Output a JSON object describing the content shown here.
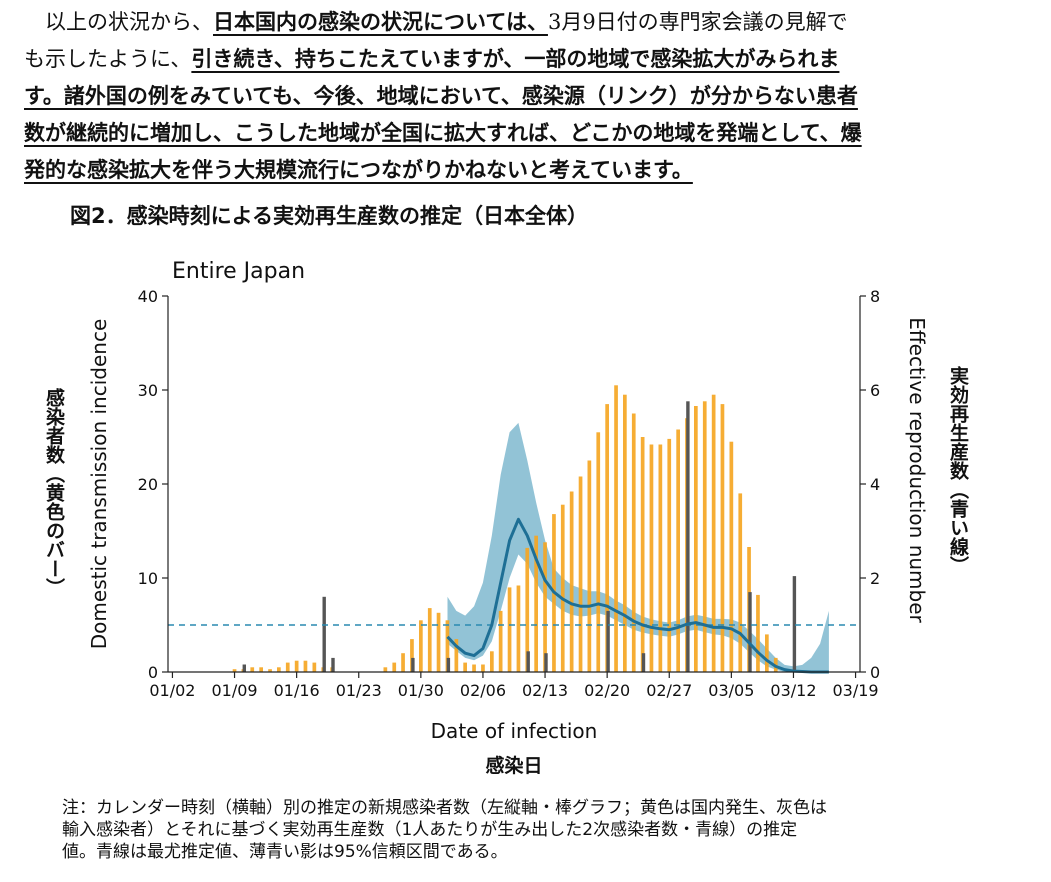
{
  "paragraph": {
    "lines": [
      [
        {
          "t": "　以上の状況から、",
          "em": false
        },
        {
          "t": "日本国内の感染の状況については、",
          "em": true
        },
        {
          "t": "3月9日付の専門家会議の見解で",
          "em": false
        }
      ],
      [
        {
          "t": "も示したように、",
          "em": false
        },
        {
          "t": "引き続き、持ちこたえていますが、一部の地域で感染拡大がみられま",
          "em": true
        }
      ],
      [
        {
          "t": "す。諸外国の例をみていても、今後、地域において、感染源（リンク）が分からない患者",
          "em": true
        }
      ],
      [
        {
          "t": "数が継続的に増加し、こうした地域が全国に拡大すれば、どこかの地域を発端として、爆",
          "em": true
        }
      ],
      [
        {
          "t": "発的な感染拡大を伴う大規模流行につながりかねないと考えています。",
          "em": true
        }
      ]
    ]
  },
  "figure_title": "図2．感染時刻による実効再生産数の推定（日本全体）",
  "chart_data": {
    "type": "bar",
    "title": "Entire Japan",
    "xlabel": "Date of infection",
    "xlabel_ja": "感染日",
    "ylabel_left": "Domestic transmission incidence",
    "ylabel_left_ja": "感染者数（黄色のバー）",
    "ylabel_right": "Effective reproduction number",
    "ylabel_right_ja": "実効再生産数（青い線）",
    "ylim_left": [
      0,
      40
    ],
    "ylim_right": [
      0,
      8
    ],
    "yticks_left": [
      0,
      10,
      20,
      30,
      40
    ],
    "yticks_right": [
      0,
      2,
      4,
      6,
      8
    ],
    "xticks": [
      "01/02",
      "01/09",
      "01/16",
      "01/23",
      "01/30",
      "02/06",
      "02/13",
      "02/20",
      "02/27",
      "03/05",
      "03/12",
      "03/19"
    ],
    "x_start": "2020-01-02",
    "domestic": [
      {
        "date": "2020-01-09",
        "v": 0.3
      },
      {
        "date": "2020-01-10",
        "v": 0.3
      },
      {
        "date": "2020-01-11",
        "v": 0.5
      },
      {
        "date": "2020-01-12",
        "v": 0.5
      },
      {
        "date": "2020-01-13",
        "v": 0.3
      },
      {
        "date": "2020-01-14",
        "v": 0.5
      },
      {
        "date": "2020-01-15",
        "v": 1.0
      },
      {
        "date": "2020-01-16",
        "v": 1.2
      },
      {
        "date": "2020-01-17",
        "v": 1.2
      },
      {
        "date": "2020-01-18",
        "v": 1.0
      },
      {
        "date": "2020-01-19",
        "v": 0.5
      },
      {
        "date": "2020-01-20",
        "v": 0.5
      },
      {
        "date": "2020-01-26",
        "v": 0.5
      },
      {
        "date": "2020-01-27",
        "v": 1.0
      },
      {
        "date": "2020-01-28",
        "v": 2.0
      },
      {
        "date": "2020-01-29",
        "v": 3.5
      },
      {
        "date": "2020-01-30",
        "v": 5.5
      },
      {
        "date": "2020-01-31",
        "v": 6.8
      },
      {
        "date": "2020-02-01",
        "v": 6.3
      },
      {
        "date": "2020-02-02",
        "v": 5.5
      },
      {
        "date": "2020-02-03",
        "v": 3.5
      },
      {
        "date": "2020-02-04",
        "v": 1.0
      },
      {
        "date": "2020-02-05",
        "v": 0.8
      },
      {
        "date": "2020-02-06",
        "v": 0.8
      },
      {
        "date": "2020-02-07",
        "v": 2.2
      },
      {
        "date": "2020-02-08",
        "v": 6.5
      },
      {
        "date": "2020-02-09",
        "v": 9.0
      },
      {
        "date": "2020-02-10",
        "v": 9.2
      },
      {
        "date": "2020-02-11",
        "v": 13.2
      },
      {
        "date": "2020-02-12",
        "v": 14.5
      },
      {
        "date": "2020-02-13",
        "v": 13.8
      },
      {
        "date": "2020-02-14",
        "v": 16.8
      },
      {
        "date": "2020-02-15",
        "v": 17.8
      },
      {
        "date": "2020-02-16",
        "v": 19.2
      },
      {
        "date": "2020-02-17",
        "v": 20.8
      },
      {
        "date": "2020-02-18",
        "v": 22.5
      },
      {
        "date": "2020-02-19",
        "v": 25.5
      },
      {
        "date": "2020-02-20",
        "v": 28.5
      },
      {
        "date": "2020-02-21",
        "v": 30.5
      },
      {
        "date": "2020-02-22",
        "v": 29.5
      },
      {
        "date": "2020-02-23",
        "v": 27.5
      },
      {
        "date": "2020-02-24",
        "v": 25.0
      },
      {
        "date": "2020-02-25",
        "v": 24.2
      },
      {
        "date": "2020-02-26",
        "v": 24.2
      },
      {
        "date": "2020-02-27",
        "v": 24.8
      },
      {
        "date": "2020-02-28",
        "v": 25.8
      },
      {
        "date": "2020-02-29",
        "v": 27.0
      },
      {
        "date": "2020-03-01",
        "v": 28.3
      },
      {
        "date": "2020-03-02",
        "v": 28.8
      },
      {
        "date": "2020-03-03",
        "v": 29.5
      },
      {
        "date": "2020-03-04",
        "v": 28.5
      },
      {
        "date": "2020-03-05",
        "v": 24.5
      },
      {
        "date": "2020-03-06",
        "v": 19.0
      },
      {
        "date": "2020-03-07",
        "v": 13.3
      },
      {
        "date": "2020-03-08",
        "v": 8.2
      },
      {
        "date": "2020-03-09",
        "v": 4.0
      },
      {
        "date": "2020-03-10",
        "v": 1.5
      }
    ],
    "imported": [
      {
        "date": "2020-01-10",
        "v": 0.8
      },
      {
        "date": "2020-01-19",
        "v": 8.0
      },
      {
        "date": "2020-01-20",
        "v": 1.5
      },
      {
        "date": "2020-01-29",
        "v": 1.5
      },
      {
        "date": "2020-02-02",
        "v": 1.5
      },
      {
        "date": "2020-02-11",
        "v": 2.2
      },
      {
        "date": "2020-02-13",
        "v": 2.0
      },
      {
        "date": "2020-02-20",
        "v": 6.5
      },
      {
        "date": "2020-02-24",
        "v": 2.0
      },
      {
        "date": "2020-02-29",
        "v": 28.8
      },
      {
        "date": "2020-03-07",
        "v": 8.5
      },
      {
        "date": "2020-03-12",
        "v": 10.2
      }
    ],
    "reproduction_number": [
      {
        "date": "2020-02-02",
        "r": 0.75,
        "lo": 0.6,
        "hi": 1.6
      },
      {
        "date": "2020-02-03",
        "r": 0.55,
        "lo": 0.45,
        "hi": 1.3
      },
      {
        "date": "2020-02-04",
        "r": 0.4,
        "lo": 0.3,
        "hi": 1.2
      },
      {
        "date": "2020-02-05",
        "r": 0.35,
        "lo": 0.25,
        "hi": 1.4
      },
      {
        "date": "2020-02-06",
        "r": 0.5,
        "lo": 0.35,
        "hi": 1.9
      },
      {
        "date": "2020-02-07",
        "r": 1.0,
        "lo": 0.65,
        "hi": 2.9
      },
      {
        "date": "2020-02-08",
        "r": 1.9,
        "lo": 1.3,
        "hi": 4.2
      },
      {
        "date": "2020-02-09",
        "r": 2.8,
        "lo": 2.0,
        "hi": 5.1
      },
      {
        "date": "2020-02-10",
        "r": 3.25,
        "lo": 2.5,
        "hi": 5.3
      },
      {
        "date": "2020-02-11",
        "r": 2.9,
        "lo": 2.3,
        "hi": 4.5
      },
      {
        "date": "2020-02-12",
        "r": 2.4,
        "lo": 1.9,
        "hi": 3.6
      },
      {
        "date": "2020-02-13",
        "r": 1.95,
        "lo": 1.6,
        "hi": 2.8
      },
      {
        "date": "2020-02-14",
        "r": 1.7,
        "lo": 1.45,
        "hi": 2.2
      },
      {
        "date": "2020-02-15",
        "r": 1.55,
        "lo": 1.3,
        "hi": 2.0
      },
      {
        "date": "2020-02-16",
        "r": 1.45,
        "lo": 1.22,
        "hi": 1.85
      },
      {
        "date": "2020-02-17",
        "r": 1.4,
        "lo": 1.18,
        "hi": 1.78
      },
      {
        "date": "2020-02-18",
        "r": 1.4,
        "lo": 1.2,
        "hi": 1.72
      },
      {
        "date": "2020-02-19",
        "r": 1.45,
        "lo": 1.25,
        "hi": 1.72
      },
      {
        "date": "2020-02-20",
        "r": 1.4,
        "lo": 1.2,
        "hi": 1.65
      },
      {
        "date": "2020-02-21",
        "r": 1.3,
        "lo": 1.1,
        "hi": 1.52
      },
      {
        "date": "2020-02-22",
        "r": 1.2,
        "lo": 1.0,
        "hi": 1.42
      },
      {
        "date": "2020-02-23",
        "r": 1.08,
        "lo": 0.9,
        "hi": 1.28
      },
      {
        "date": "2020-02-24",
        "r": 1.0,
        "lo": 0.84,
        "hi": 1.18
      },
      {
        "date": "2020-02-25",
        "r": 0.95,
        "lo": 0.8,
        "hi": 1.12
      },
      {
        "date": "2020-02-26",
        "r": 0.92,
        "lo": 0.77,
        "hi": 1.08
      },
      {
        "date": "2020-02-27",
        "r": 0.9,
        "lo": 0.75,
        "hi": 1.05
      },
      {
        "date": "2020-02-28",
        "r": 0.95,
        "lo": 0.8,
        "hi": 1.1
      },
      {
        "date": "2020-02-29",
        "r": 1.02,
        "lo": 0.87,
        "hi": 1.18
      },
      {
        "date": "2020-03-01",
        "r": 1.05,
        "lo": 0.9,
        "hi": 1.22
      },
      {
        "date": "2020-03-02",
        "r": 1.0,
        "lo": 0.85,
        "hi": 1.18
      },
      {
        "date": "2020-03-03",
        "r": 0.95,
        "lo": 0.8,
        "hi": 1.13
      },
      {
        "date": "2020-03-04",
        "r": 0.95,
        "lo": 0.78,
        "hi": 1.13
      },
      {
        "date": "2020-03-05",
        "r": 0.92,
        "lo": 0.72,
        "hi": 1.12
      },
      {
        "date": "2020-03-06",
        "r": 0.82,
        "lo": 0.6,
        "hi": 1.05
      },
      {
        "date": "2020-03-07",
        "r": 0.62,
        "lo": 0.42,
        "hi": 0.88
      },
      {
        "date": "2020-03-08",
        "r": 0.42,
        "lo": 0.25,
        "hi": 0.7
      },
      {
        "date": "2020-03-09",
        "r": 0.25,
        "lo": 0.12,
        "hi": 0.5
      },
      {
        "date": "2020-03-10",
        "r": 0.12,
        "lo": 0.05,
        "hi": 0.3
      },
      {
        "date": "2020-03-11",
        "r": 0.05,
        "lo": 0.0,
        "hi": 0.15
      },
      {
        "date": "2020-03-12",
        "r": 0.02,
        "lo": 0.0,
        "hi": 0.12
      },
      {
        "date": "2020-03-13",
        "r": 0.01,
        "lo": 0.0,
        "hi": 0.15
      },
      {
        "date": "2020-03-14",
        "r": 0.0,
        "lo": 0.0,
        "hi": 0.3
      },
      {
        "date": "2020-03-15",
        "r": 0.0,
        "lo": 0.0,
        "hi": 0.6
      },
      {
        "date": "2020-03-16",
        "r": 0.0,
        "lo": 0.0,
        "hi": 1.3
      }
    ],
    "reference_line_r": 1,
    "colors": {
      "domestic": "#f5a623",
      "imported": "#555555",
      "r_line": "#1e6f95",
      "ci_band": "#7fb8cf",
      "ci_inner": "#5f9a8e",
      "ref_line": "#2a8ab0"
    }
  },
  "note": {
    "lines": [
      "注：カレンダー時刻（横軸）別の推定の新規感染者数（左縦軸・棒グラフ；黄色は国内発生、灰色は",
      "輸入感染者）とそれに基づく実効再生産数（1人あたりが生み出した2次感染者数・青線）の推定",
      "値。青線は最尤推定値、薄青い影は95%信頼区間である。"
    ]
  }
}
